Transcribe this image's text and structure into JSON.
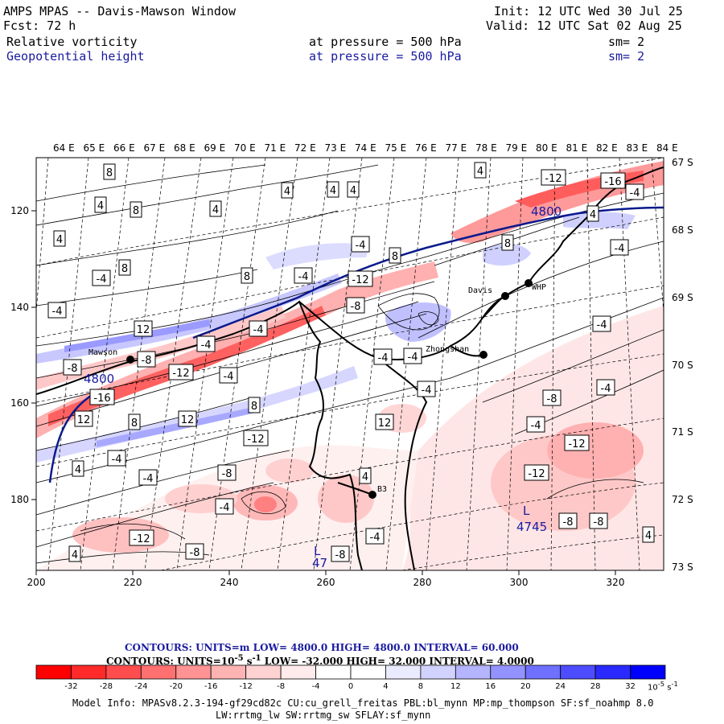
{
  "header": {
    "title": "AMPS MPAS -- Davis-Mawson Window",
    "forecast": "Fcst:    72 h",
    "init": "Init: 12 UTC Wed 30 Jul 25",
    "valid": "Valid: 12 UTC Sat 02 Aug 25",
    "field1": {
      "name": "Relative vorticity",
      "pressure": "at pressure =  500 hPa",
      "sm": "sm= 2"
    },
    "field2": {
      "name": "Geopotential height",
      "pressure": "at pressure =  500 hPa",
      "sm": "sm= 2"
    }
  },
  "map": {
    "lon_labels": [
      "64 E",
      "65 E",
      "66 E",
      "67 E",
      "68 E",
      "69 E",
      "70 E",
      "71 E",
      "72 E",
      "73 E",
      "74 E",
      "75 E",
      "76 E",
      "77 E",
      "78 E",
      "79 E",
      "80 E",
      "81 E",
      "82 E",
      "83 E",
      "84 E"
    ],
    "lat_labels": [
      "67 S",
      "68 S",
      "69 S",
      "70 S",
      "71 S",
      "72 S",
      "73 S"
    ],
    "x_ticks": [
      "200",
      "220",
      "240",
      "260",
      "280",
      "300",
      "320"
    ],
    "y_ticks": [
      "120",
      "140",
      "160",
      "180"
    ],
    "stations": [
      {
        "name": "Mawson",
        "x": 162,
        "y": 447
      },
      {
        "name": "Davis",
        "x": 628,
        "y": 368
      },
      {
        "name": "WHP",
        "x": 657,
        "y": 352
      },
      {
        "name": "Zhongshan",
        "x": 601,
        "y": 441
      },
      {
        "name": "B3",
        "x": 463,
        "y": 615
      }
    ],
    "height_labels": [
      "4800",
      "4800",
      "4745",
      "47"
    ],
    "low_labels": [
      "L",
      "L"
    ],
    "vorticity_labels": [
      "8",
      "4",
      "8",
      "4",
      "4",
      "4",
      "4",
      "4",
      "-12",
      "-16",
      "-4",
      "4",
      "8",
      "4",
      "-4",
      "8",
      "-4",
      "-4",
      "8",
      "-4",
      "8",
      "-4",
      "-12",
      "-8",
      "-4",
      "-4",
      "-4",
      "-4",
      "12",
      "-8",
      "-12",
      "-8",
      "-4",
      "-4",
      "-4",
      "-12",
      "-4",
      "8",
      "-16",
      "8",
      "12",
      "12",
      "-12",
      "-4",
      "-8",
      "4",
      "12",
      "-8",
      "-4",
      "-4",
      "-4",
      "4",
      "-8",
      "-12",
      "-8",
      "-12",
      "-8",
      "-8",
      "-4",
      "4",
      "4"
    ]
  },
  "footer": {
    "contours1": "CONTOURS:  UNITS=m  LOW=  4800.0     HIGH=  4800.0     INTERVAL=   60.000",
    "contours2": "CONTOURS:  UNITS=10",
    "contours2_sup": "-5",
    "contours2_rest": " s",
    "contours2_sup2": "-1",
    "contours2_tail": "  LOW=  -32.000     HIGH=  32.000     INTERVAL=   4.0000",
    "colorbar_labels": [
      "-32",
      "-28",
      "-24",
      "-20",
      "-16",
      "-12",
      "-8",
      "-4",
      "0",
      "4",
      "8",
      "12",
      "16",
      "20",
      "24",
      "28",
      "32"
    ],
    "colorbar_unit": "10",
    "colorbar_unit_sup": "-5",
    "colorbar_unit_rest": " s",
    "colorbar_unit_sup2": "-1",
    "colorbar_colors": [
      "#ff0000",
      "#ff2a2a",
      "#ff4d4d",
      "#ff7070",
      "#ff9393",
      "#ffb4b4",
      "#ffd2d2",
      "#ffebeb",
      "#ffffff",
      "#ffffff",
      "#ebebff",
      "#d2d2ff",
      "#b4b4ff",
      "#9393ff",
      "#7070ff",
      "#4d4dff",
      "#2a2aff",
      "#0000ff"
    ],
    "model_info": "Model Info: MPASv8.2.3-194-gf29cd82c CU:cu_grell_freitas PBL:bl_mynn MP:mp_thompson SF:sf_noahmp 8.0",
    "model_info2": "LW:rrtmg_lw SW:rrtmg_sw SFLAY:sf_mynn"
  }
}
